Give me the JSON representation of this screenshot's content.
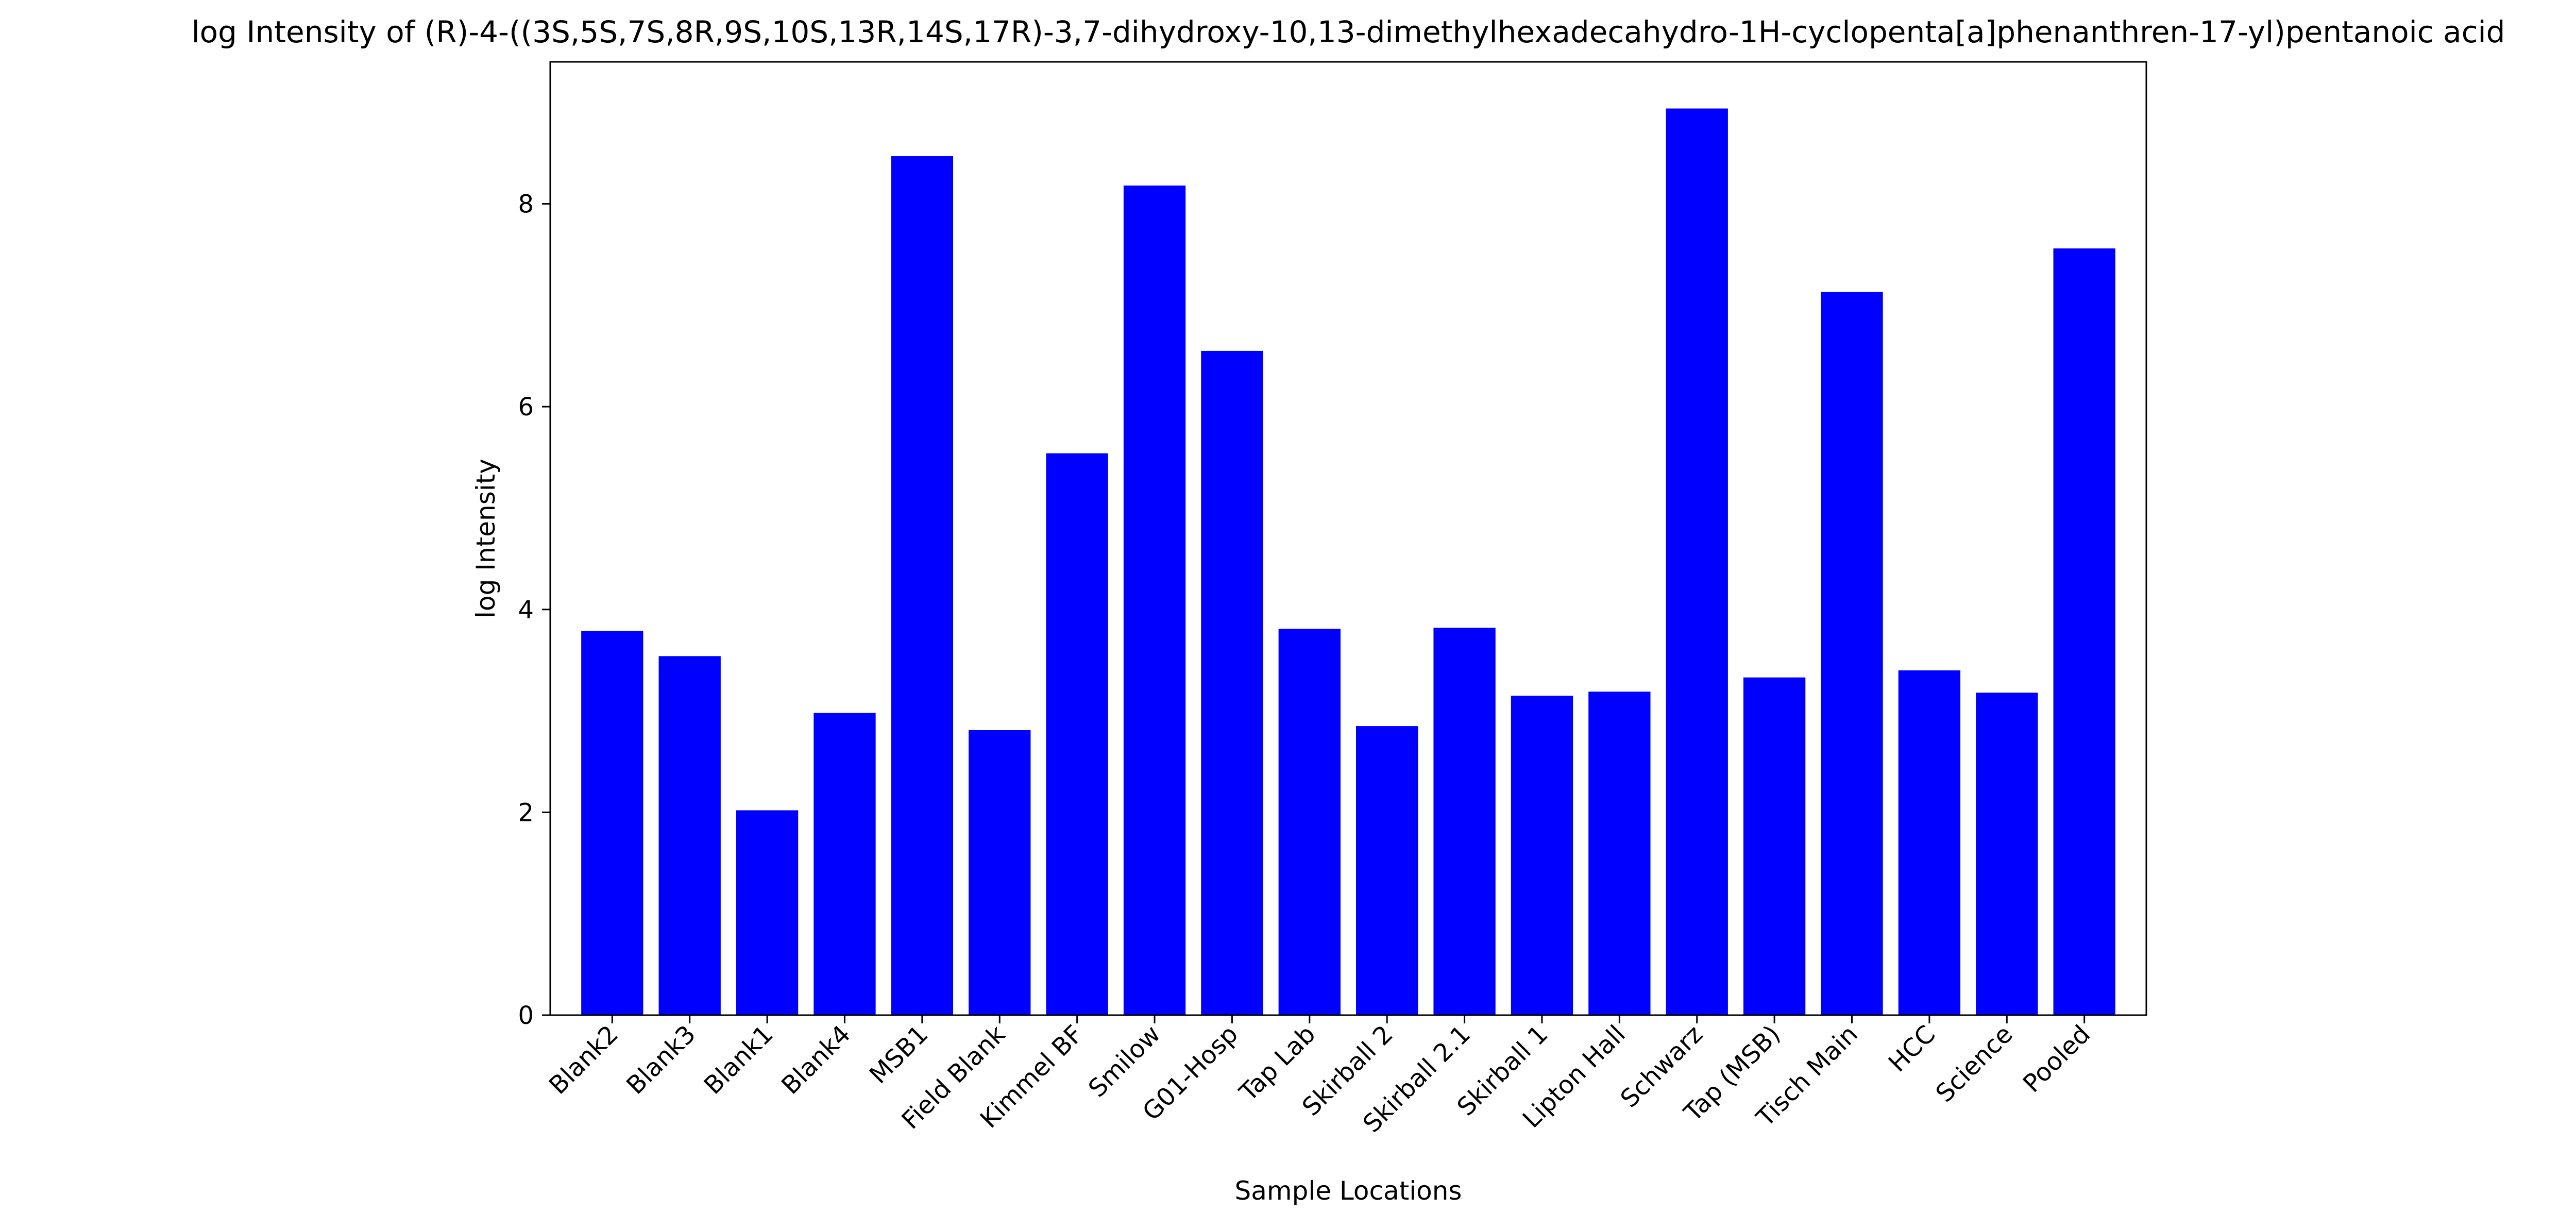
{
  "chart_data": {
    "type": "bar",
    "title": "log Intensity of (R)-4-((3S,5S,7S,8R,9S,10S,13R,14S,17R)-3,7-dihydroxy-10,13-dimethylhexadecahydro-1H-cyclopenta[a]phenanthren-17-yl)pentanoic acid",
    "xlabel": "Sample Locations",
    "ylabel": "log Intensity",
    "categories": [
      "Blank2",
      "Blank3",
      "Blank1",
      "Blank4",
      "MSB1",
      "Field Blank",
      "Kimmel BF",
      "Smilow",
      "G01-Hosp",
      "Tap Lab",
      "Skirball 2",
      "Skirball 2.1",
      "Skirball 1",
      "Lipton Hall",
      "Schwarz",
      "Tap (MSB)",
      "Tisch Main",
      "HCC",
      "Science",
      "Pooled"
    ],
    "values": [
      3.79,
      3.54,
      2.02,
      2.98,
      8.47,
      2.81,
      5.54,
      8.18,
      6.55,
      3.81,
      2.85,
      3.82,
      3.15,
      3.19,
      8.94,
      3.33,
      7.13,
      3.4,
      3.18,
      7.56
    ],
    "ylim": [
      0,
      9.4
    ],
    "yticks": [
      0,
      2,
      4,
      6,
      8
    ],
    "grid": false,
    "bar_color": "#0000ff"
  }
}
